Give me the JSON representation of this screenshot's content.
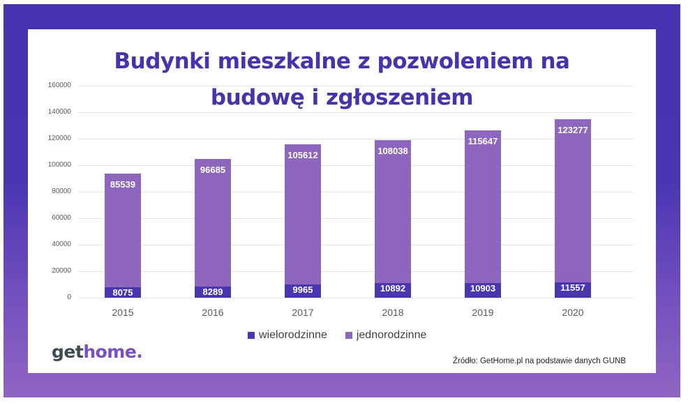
{
  "title_line1": "Budynki mieszkalne z pozwoleniem na",
  "title_line2": "budowę i zgłoszeniem",
  "colors": {
    "frame_top": "#4633b0",
    "frame_bottom": "#8e65c2",
    "wielorodzinne": "#4a37b0",
    "jednorodzinne": "#8d66bd",
    "title": "#4634ad"
  },
  "y_ticks": [
    "160000",
    "140000",
    "120000",
    "100000",
    "80000",
    "60000",
    "40000",
    "20000",
    "0"
  ],
  "legend": {
    "series1": "wielorodzinne",
    "series2": "jednorodzinne"
  },
  "logo": {
    "part1": "get",
    "part2": "home."
  },
  "source": "Źródło: GetHome.pl na podstawie danych GUNB",
  "chart_data": {
    "type": "bar",
    "stacked": true,
    "title": "Budynki mieszkalne z pozwoleniem na budowę i zgłoszeniem",
    "categories": [
      "2015",
      "2016",
      "2017",
      "2018",
      "2019",
      "2020"
    ],
    "series": [
      {
        "name": "wielorodzinne",
        "values": [
          8075,
          8289,
          9965,
          10892,
          10903,
          11557
        ]
      },
      {
        "name": "jednorodzinne",
        "values": [
          85539,
          96685,
          105612,
          108038,
          115647,
          123277
        ]
      }
    ],
    "xlabel": "",
    "ylabel": "",
    "ylim": [
      0,
      160000
    ],
    "grid": true,
    "legend_position": "bottom",
    "source": "Źródło: GetHome.pl na podstawie danych GUNB"
  }
}
